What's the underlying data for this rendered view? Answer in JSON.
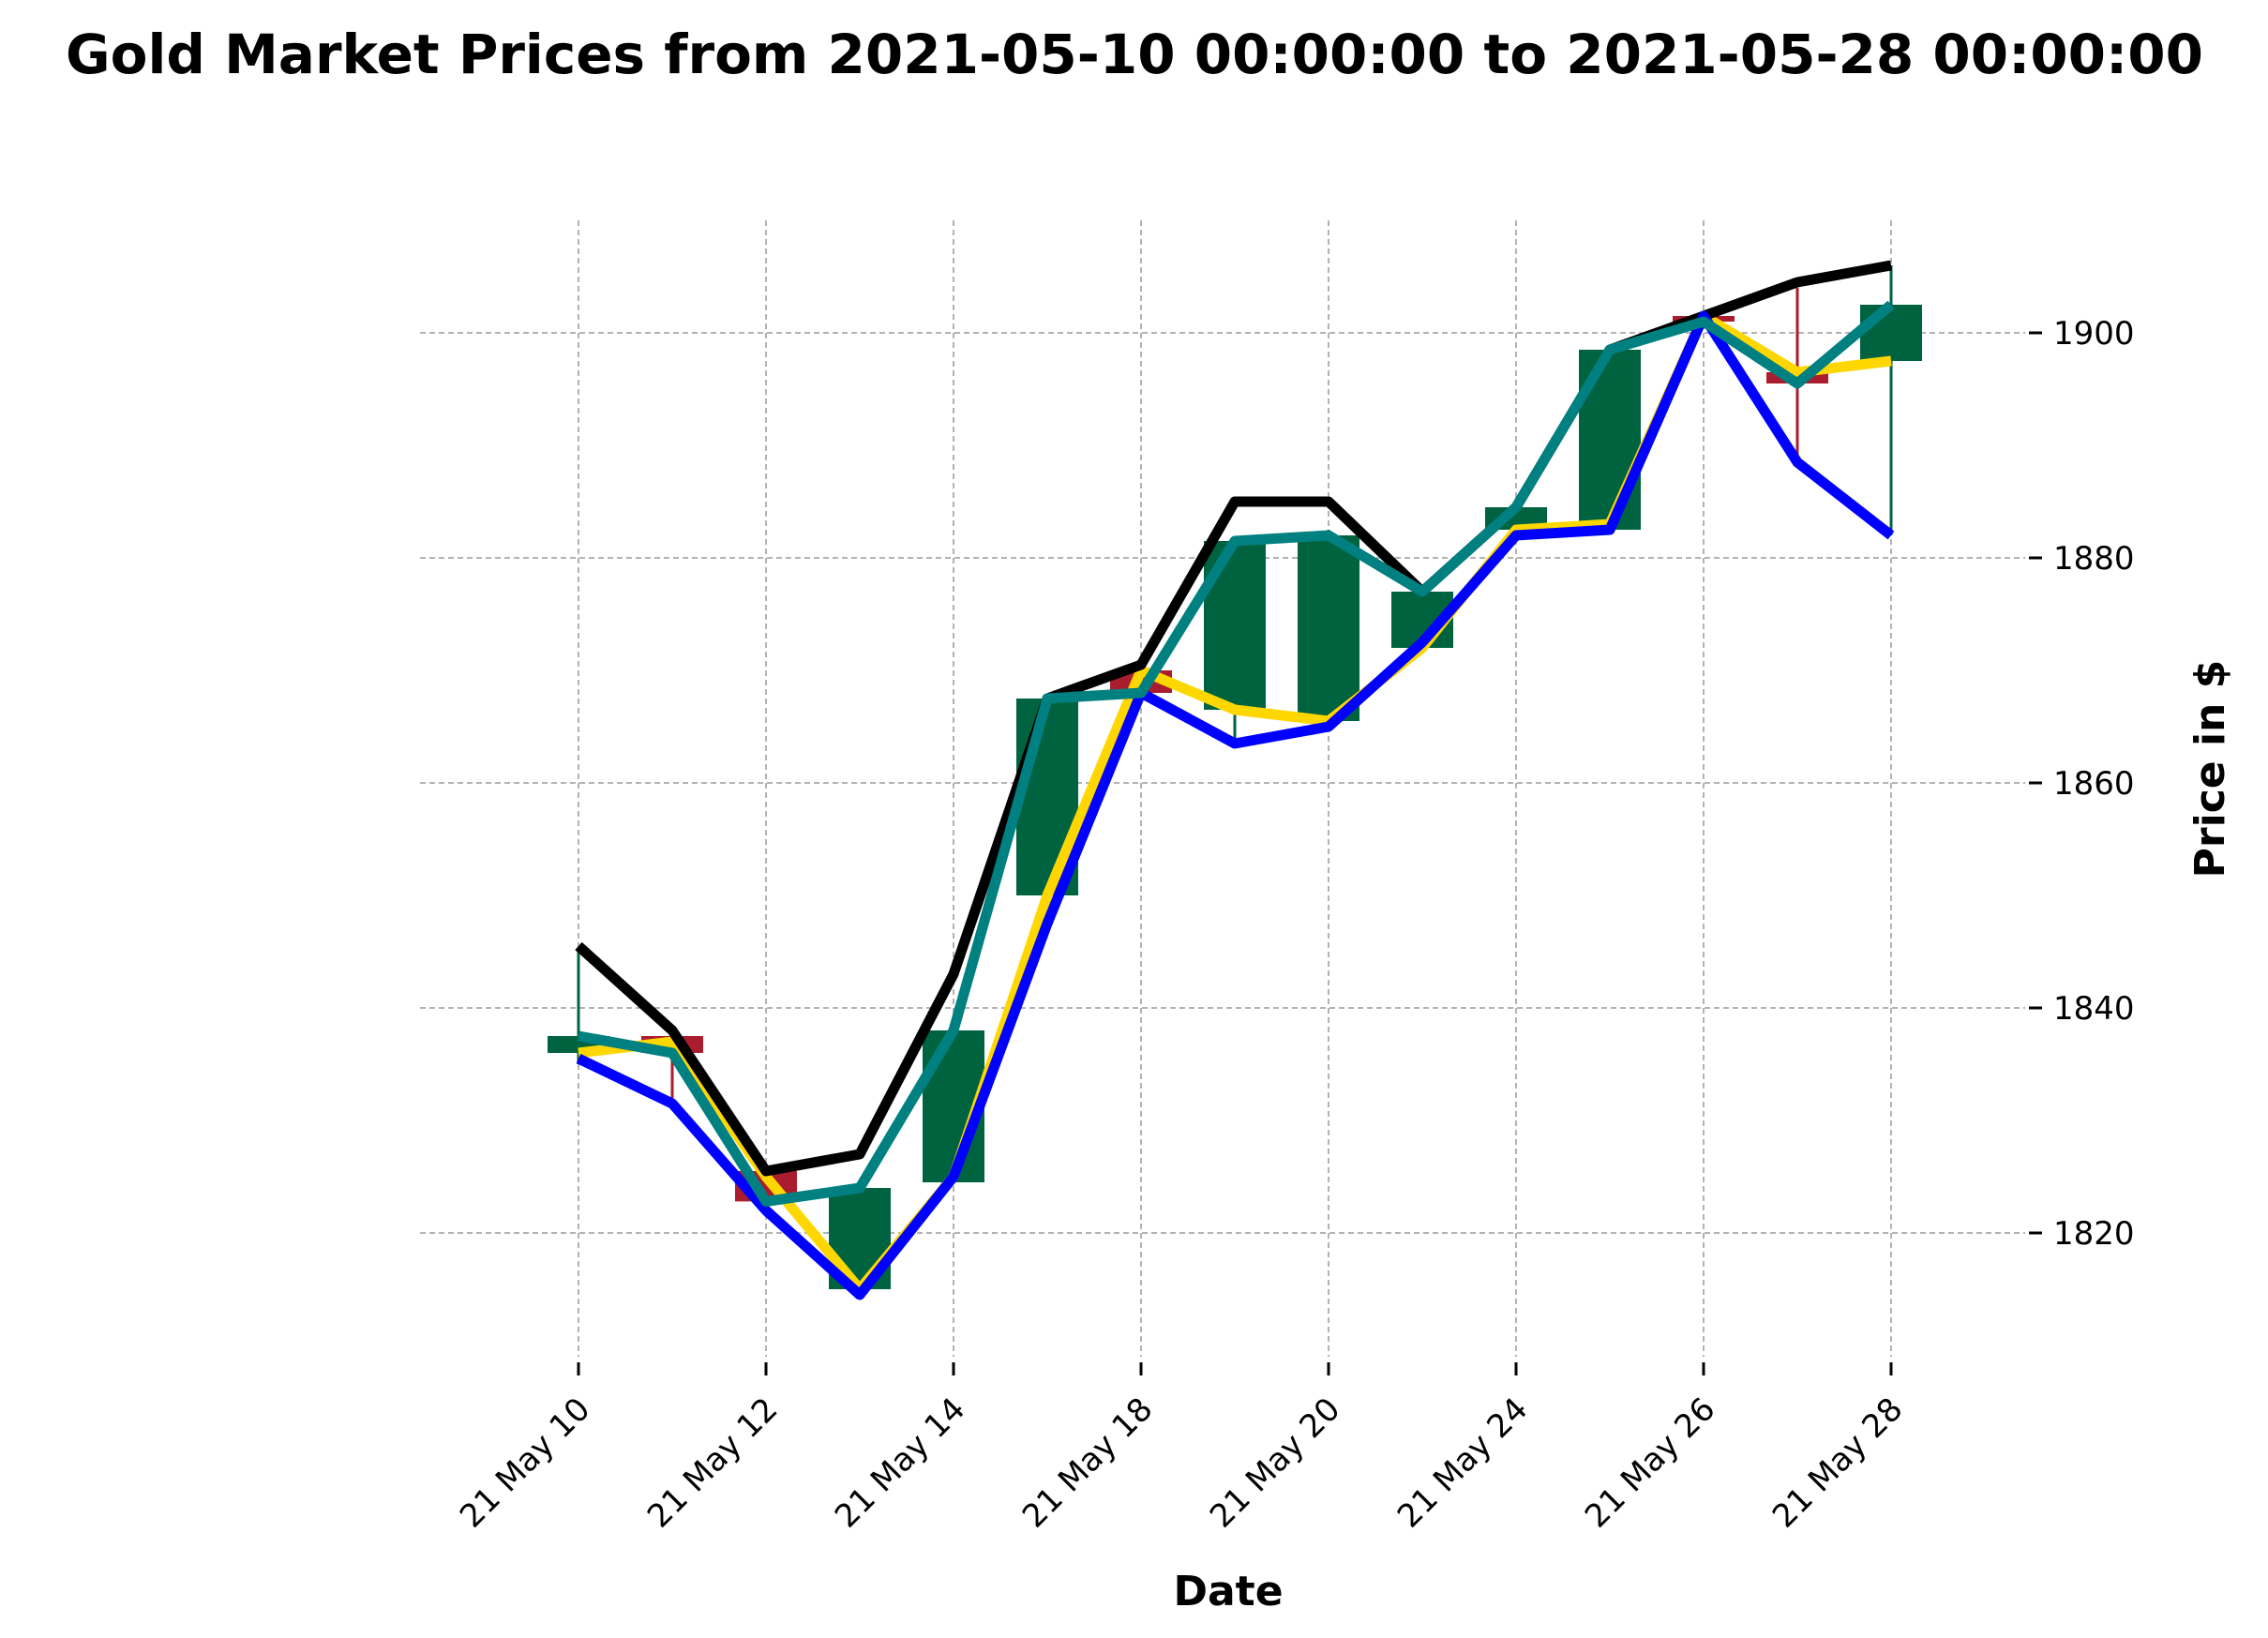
{
  "chart_data": {
    "type": "candlestick",
    "title": "Gold Market Prices from 2021-05-10 00:00:00 to 2021-05-28 00:00:00",
    "xlabel": "Date",
    "ylabel": "Price in $",
    "ylim": [
      1809,
      1910
    ],
    "yticks": [
      1820,
      1840,
      1860,
      1880,
      1900
    ],
    "grid": true,
    "y_axis_position": "right",
    "x_tick_labels": [
      "21 May 10",
      "21 May 12",
      "21 May 14",
      "21 May 18",
      "21 May 20",
      "21 May 24",
      "21 May 26",
      "21 May 28"
    ],
    "x_tick_sessions": [
      0,
      2,
      4,
      6,
      8,
      10,
      12,
      14
    ],
    "candles": [
      {
        "date": "2021-05-10",
        "open": 1836.0,
        "high": 1845.0,
        "low": 1835.0,
        "close": 1837.5
      },
      {
        "date": "2021-05-11",
        "open": 1837.5,
        "high": 1837.5,
        "low": 1831.5,
        "close": 1836.0
      },
      {
        "date": "2021-05-12",
        "open": 1825.5,
        "high": 1826.0,
        "low": 1822.0,
        "close": 1822.8
      },
      {
        "date": "2021-05-13",
        "open": 1815.0,
        "high": 1824.5,
        "low": 1814.5,
        "close": 1824.0
      },
      {
        "date": "2021-05-14",
        "open": 1824.5,
        "high": 1838.0,
        "low": 1824.5,
        "close": 1838.0
      },
      {
        "date": "2021-05-17",
        "open": 1850.0,
        "high": 1867.5,
        "low": 1850.0,
        "close": 1867.5
      },
      {
        "date": "2021-05-18",
        "open": 1870.0,
        "high": 1870.5,
        "low": 1868.0,
        "close": 1868.0
      },
      {
        "date": "2021-05-19",
        "open": 1866.5,
        "high": 1881.5,
        "low": 1863.5,
        "close": 1881.5
      },
      {
        "date": "2021-05-20",
        "open": 1865.5,
        "high": 1882.5,
        "low": 1865.5,
        "close": 1882.0
      },
      {
        "date": "2021-05-21",
        "open": 1872.0,
        "high": 1877.0,
        "low": 1872.0,
        "close": 1877.0
      },
      {
        "date": "2021-05-24",
        "open": 1882.5,
        "high": 1884.5,
        "low": 1882.0,
        "close": 1884.5
      },
      {
        "date": "2021-05-25",
        "open": 1882.5,
        "high": 1898.5,
        "low": 1882.5,
        "close": 1898.5
      },
      {
        "date": "2021-05-26",
        "open": 1901.5,
        "high": 1901.5,
        "low": 1901.0,
        "close": 1901.0
      },
      {
        "date": "2021-05-27",
        "open": 1896.5,
        "high": 1904.0,
        "low": 1888.0,
        "close": 1895.5
      },
      {
        "date": "2021-05-28",
        "open": 1897.5,
        "high": 1906.0,
        "low": 1882.0,
        "close": 1902.5
      }
    ],
    "series": [
      {
        "color": "#FFD700",
        "values": [
          1836.0,
          1837.0,
          1825.0,
          1815.0,
          1825.0,
          1850.0,
          1870.0,
          1866.5,
          1865.5,
          1872.0,
          1882.5,
          1883.0,
          1901.5,
          1896.5,
          1897.5
        ]
      },
      {
        "color": "#000000",
        "values": [
          1845.5,
          1838.0,
          1825.5,
          1827.0,
          1843.0,
          1867.5,
          1870.5,
          1885.0,
          1885.0,
          1877.0,
          1884.5,
          1898.5,
          1901.5,
          1904.5,
          1906.0
        ]
      },
      {
        "color": "#0000FF",
        "values": [
          1835.5,
          1831.5,
          1822.0,
          1814.5,
          1825.0,
          1847.5,
          1868.0,
          1863.5,
          1865.0,
          1872.5,
          1882.0,
          1882.5,
          1901.5,
          1888.5,
          1882.0
        ]
      },
      {
        "color": "#008080",
        "values": [
          1837.5,
          1836.0,
          1822.8,
          1824.0,
          1838.0,
          1867.5,
          1868.0,
          1881.5,
          1882.0,
          1877.0,
          1884.5,
          1898.5,
          1901.0,
          1895.5,
          1902.5
        ]
      }
    ],
    "up_color": "#006340",
    "down_color": "#A91D2E"
  }
}
